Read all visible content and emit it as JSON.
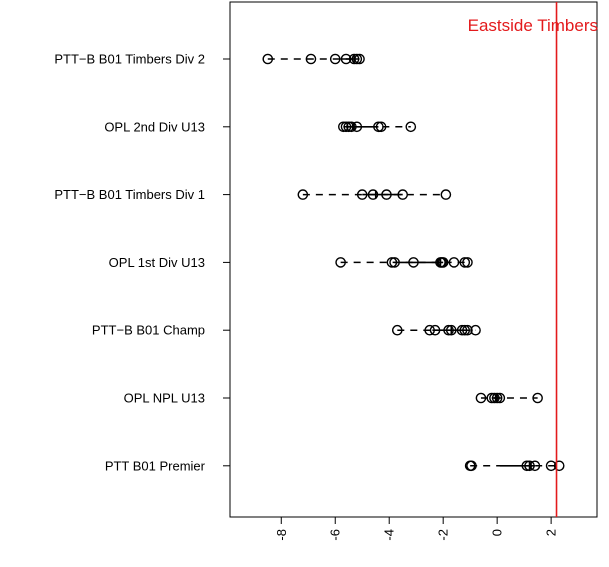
{
  "chart_data": {
    "type": "scatter",
    "title": "",
    "xlabel": "",
    "ylabel": "",
    "xlim": [
      -9.9,
      3.7
    ],
    "x_ticks": [
      "-8",
      "-6",
      "-4",
      "-2",
      "0",
      "2"
    ],
    "x_tick_values": [
      -8,
      -6,
      -4,
      -2,
      0,
      2
    ],
    "categories": [
      "PTT−B B01 Timbers Div 2",
      "OPL 2nd Div U13",
      "PTT−B B01 Timbers Div 1",
      "OPL 1st Div U13",
      "PTT−B B01 Champ",
      "OPL NPL U13",
      "PTT B01 Premier"
    ],
    "rows": [
      {
        "min": -8.5,
        "q1": -5.8,
        "median": -5.3,
        "q3": -5.1,
        "max": -5.1,
        "points": [
          -8.5,
          -6.9,
          -6.0,
          -5.6,
          -5.3,
          -5.2,
          -5.1
        ]
      },
      {
        "min": -5.7,
        "q1": -5.5,
        "median": -5.3,
        "q3": -4.4,
        "max": -3.2,
        "points": [
          -5.7,
          -5.6,
          -5.5,
          -5.4,
          -5.2,
          -4.4,
          -4.3,
          -3.2
        ]
      },
      {
        "min": -7.2,
        "q1": -5.0,
        "median": -4.5,
        "q3": -3.5,
        "max": -1.9,
        "points": [
          -7.2,
          -5.0,
          -4.6,
          -4.1,
          -3.5,
          -1.9
        ]
      },
      {
        "min": -5.8,
        "q1": -3.8,
        "median": -2.1,
        "q3": -2.0,
        "max": -1.1,
        "points": [
          -5.8,
          -3.9,
          -3.8,
          -3.1,
          -2.1,
          -2.05,
          -2.0,
          -1.6,
          -1.2,
          -1.1
        ]
      },
      {
        "min": -3.7,
        "q1": -2.4,
        "median": -1.7,
        "q3": -1.1,
        "max": -0.8,
        "points": [
          -3.7,
          -2.5,
          -2.3,
          -1.8,
          -1.7,
          -1.3,
          -1.2,
          -1.1,
          -0.8
        ]
      },
      {
        "min": -0.6,
        "q1": -0.2,
        "median": 0.0,
        "q3": 0.1,
        "max": 1.5,
        "points": [
          -0.6,
          -0.2,
          -0.1,
          0.0,
          0.1,
          1.5
        ]
      },
      {
        "min": -1.0,
        "q1": 0.1,
        "median": 1.2,
        "q3": 1.4,
        "max": 2.3,
        "points": [
          -1.0,
          -0.95,
          1.1,
          1.2,
          1.4,
          2.0,
          2.3
        ]
      }
    ],
    "reference_line": {
      "value": 2.2,
      "label": "Eastside Timbers",
      "color": "#e31a1c"
    }
  }
}
